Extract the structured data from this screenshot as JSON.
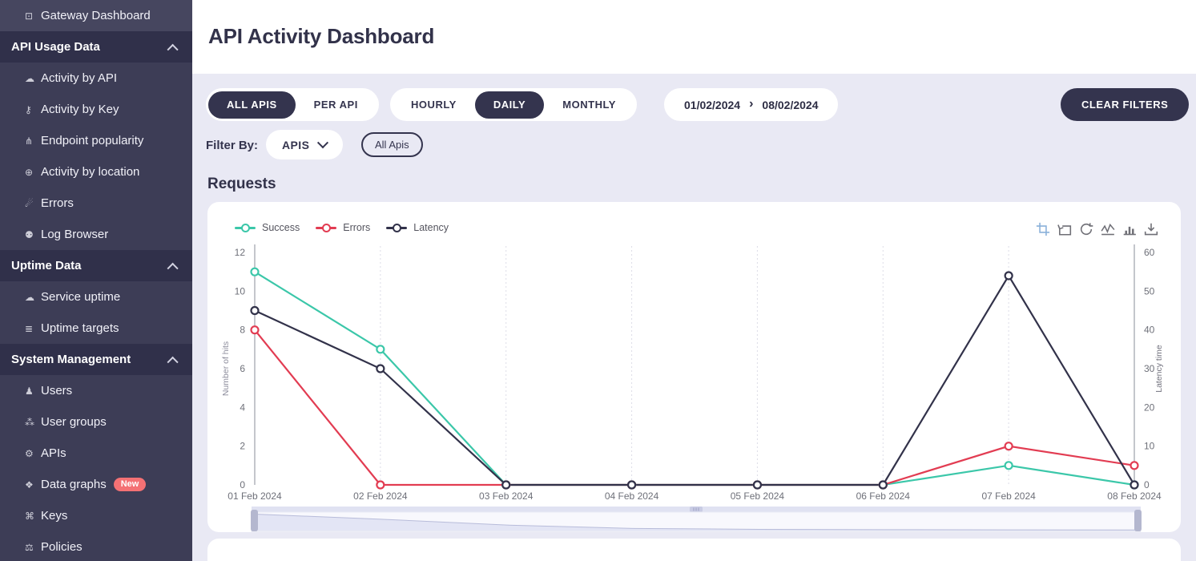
{
  "colors": {
    "sidebar_bg": "#3d3d56",
    "sidebar_section_bg": "#30304a",
    "accent_dark": "#34344e",
    "page_bg": "#e9e9f4",
    "card_bg": "#ffffff",
    "success": "#3bc7a9",
    "error": "#e23c52",
    "latency": "#32324a",
    "new_badge": "#f47174",
    "toolbox_active_icon": "#8ab1da",
    "toolbox_icon": "#6f6f76"
  },
  "sidebar": {
    "items": [
      {
        "type": "item",
        "name": "gateway-dashboard",
        "icon": "monitor-icon",
        "glyph": "⊡",
        "label": "Gateway Dashboard"
      },
      {
        "type": "section",
        "name": "api-usage-data",
        "icon": "chevron-up-icon",
        "label": "API Usage Data"
      },
      {
        "type": "item",
        "name": "activity-by-api",
        "icon": "cloud-icon",
        "glyph": "☁",
        "label": "Activity by API"
      },
      {
        "type": "item",
        "name": "activity-by-key",
        "icon": "key-icon",
        "glyph": "⚷",
        "label": "Activity by Key"
      },
      {
        "type": "item",
        "name": "endpoint-popularity",
        "icon": "fork-icon",
        "glyph": "⋔",
        "label": "Endpoint popularity"
      },
      {
        "type": "item",
        "name": "activity-by-location",
        "icon": "globe-icon",
        "glyph": "⊕",
        "label": "Activity by location"
      },
      {
        "type": "item",
        "name": "errors",
        "icon": "comet-icon",
        "glyph": "☄",
        "label": "Errors"
      },
      {
        "type": "item",
        "name": "log-browser",
        "icon": "bug-icon",
        "glyph": "⚉",
        "label": "Log Browser"
      },
      {
        "type": "section",
        "name": "uptime-data",
        "icon": "chevron-up-icon",
        "label": "Uptime Data"
      },
      {
        "type": "item",
        "name": "service-uptime",
        "icon": "cloud-icon",
        "glyph": "☁",
        "label": "Service uptime"
      },
      {
        "type": "item",
        "name": "uptime-targets",
        "icon": "list-icon",
        "glyph": "≣",
        "label": "Uptime targets"
      },
      {
        "type": "section",
        "name": "system-management",
        "icon": "chevron-up-icon",
        "label": "System Management"
      },
      {
        "type": "item",
        "name": "users",
        "icon": "user-icon",
        "glyph": "♟",
        "label": "Users"
      },
      {
        "type": "item",
        "name": "user-groups",
        "icon": "users-icon",
        "glyph": "⁂",
        "label": "User groups"
      },
      {
        "type": "item",
        "name": "apis",
        "icon": "gears-icon",
        "glyph": "⚙",
        "label": "APIs"
      },
      {
        "type": "item",
        "name": "data-graphs",
        "icon": "nodes-icon",
        "glyph": "❖",
        "label": "Data graphs",
        "badge": "New"
      },
      {
        "type": "item",
        "name": "keys",
        "icon": "hierarchy-icon",
        "glyph": "⌘",
        "label": "Keys"
      },
      {
        "type": "item",
        "name": "policies",
        "icon": "shield-icon",
        "glyph": "⚖",
        "label": "Policies"
      }
    ]
  },
  "header": {
    "title": "API Activity Dashboard"
  },
  "filters": {
    "scope_tabs": [
      {
        "label": "ALL APIS",
        "active": true
      },
      {
        "label": "PER API",
        "active": false
      }
    ],
    "granularity_tabs": [
      {
        "label": "HOURLY",
        "active": false
      },
      {
        "label": "DAILY",
        "active": true
      },
      {
        "label": "MONTHLY",
        "active": false
      }
    ],
    "date_from": "01/02/2024",
    "date_to": "08/02/2024",
    "clear_button": "CLEAR FILTERS",
    "filter_by_label": "Filter By:",
    "filter_dropdown_label": "APIS",
    "filter_chip": "All Apis"
  },
  "section_title": "Requests",
  "toolbox_icons": [
    "zoom-select-icon",
    "zoom-reset-icon",
    "restore-icon",
    "line-chart-icon",
    "bar-chart-icon",
    "download-icon"
  ],
  "chart_data": {
    "type": "line",
    "title": "Requests",
    "x": [
      "01 Feb 2024",
      "02 Feb 2024",
      "03 Feb 2024",
      "04 Feb 2024",
      "05 Feb 2024",
      "06 Feb 2024",
      "07 Feb 2024",
      "08 Feb 2024"
    ],
    "series": [
      {
        "name": "Success",
        "color": "#3bc7a9",
        "axis": "left",
        "values": [
          11,
          7,
          0,
          0,
          0,
          0,
          1,
          0
        ]
      },
      {
        "name": "Errors",
        "color": "#e23c52",
        "axis": "left",
        "values": [
          8,
          0,
          0,
          0,
          0,
          0,
          2,
          1
        ]
      },
      {
        "name": "Latency",
        "color": "#32324a",
        "axis": "right",
        "values": [
          45,
          30,
          0,
          0,
          0,
          0,
          54,
          0
        ]
      }
    ],
    "left_axis": {
      "name": "Number of hits",
      "min": 0,
      "max": 12,
      "ticks": [
        0,
        2,
        4,
        6,
        8,
        10,
        12
      ]
    },
    "right_axis": {
      "name": "Latency time",
      "min": 0,
      "max": 60,
      "ticks": [
        0,
        10,
        20,
        30,
        40,
        50,
        60
      ]
    },
    "legend_position": "top-left",
    "grid": "vertical-dotted",
    "slider_shadow_values": [
      19,
      13,
      6,
      2,
      1,
      0.6,
      0.4,
      0.2
    ]
  }
}
